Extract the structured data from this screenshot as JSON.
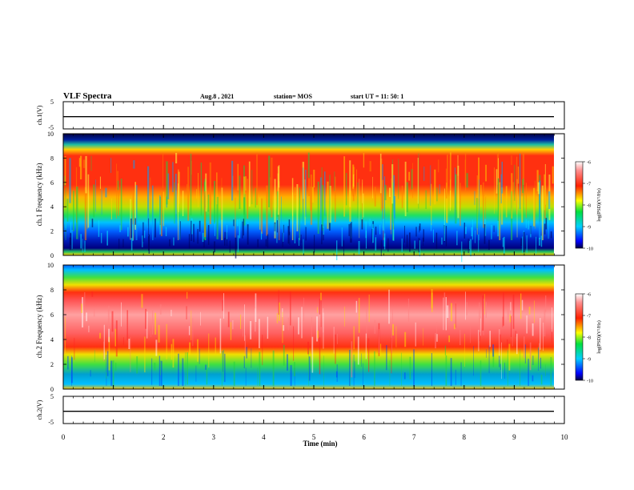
{
  "header": {
    "title": "VLF Spectra",
    "date": "Aug.8 , 2021",
    "station": "station= MOS",
    "start": "start  UT =   11: 50: 1"
  },
  "chart_data": [
    {
      "type": "line",
      "ylabel": "ch.1(V)",
      "ylim": [
        -5,
        5
      ],
      "yticks": [
        "5",
        "-5"
      ],
      "baseline": -0.5
    },
    {
      "type": "heatmap",
      "ylabel": "ch.1 Frequency (kHz)",
      "ylim": [
        0,
        10
      ],
      "yticks": [
        "0",
        "2",
        "4",
        "6",
        "8",
        "10"
      ],
      "colorbar": {
        "label": "log(PSD)(V²/Hz)",
        "range": [
          -10,
          -6
        ],
        "ticks": [
          "-6",
          "-7",
          "-8",
          "-9",
          "-10"
        ]
      }
    },
    {
      "type": "heatmap",
      "ylabel": "ch.2 Frequency (kHz)",
      "ylim": [
        0,
        10
      ],
      "yticks": [
        "0",
        "2",
        "4",
        "6",
        "8",
        "10"
      ],
      "colorbar": {
        "label": "log(PSD)(V²/Hz)",
        "range": [
          -10,
          -6
        ],
        "ticks": [
          "-6",
          "-7",
          "-8",
          "-9",
          "-10"
        ]
      }
    },
    {
      "type": "line",
      "ylabel": "ch.2(V)",
      "ylim": [
        -5,
        5
      ],
      "yticks": [
        "5",
        "-5"
      ],
      "baseline": -0.5
    }
  ],
  "xaxis": {
    "label": "Time (min)",
    "xlim": [
      0,
      10
    ],
    "ticks": [
      "0",
      "1",
      "2",
      "3",
      "4",
      "5",
      "6",
      "7",
      "8",
      "9",
      "10"
    ]
  }
}
